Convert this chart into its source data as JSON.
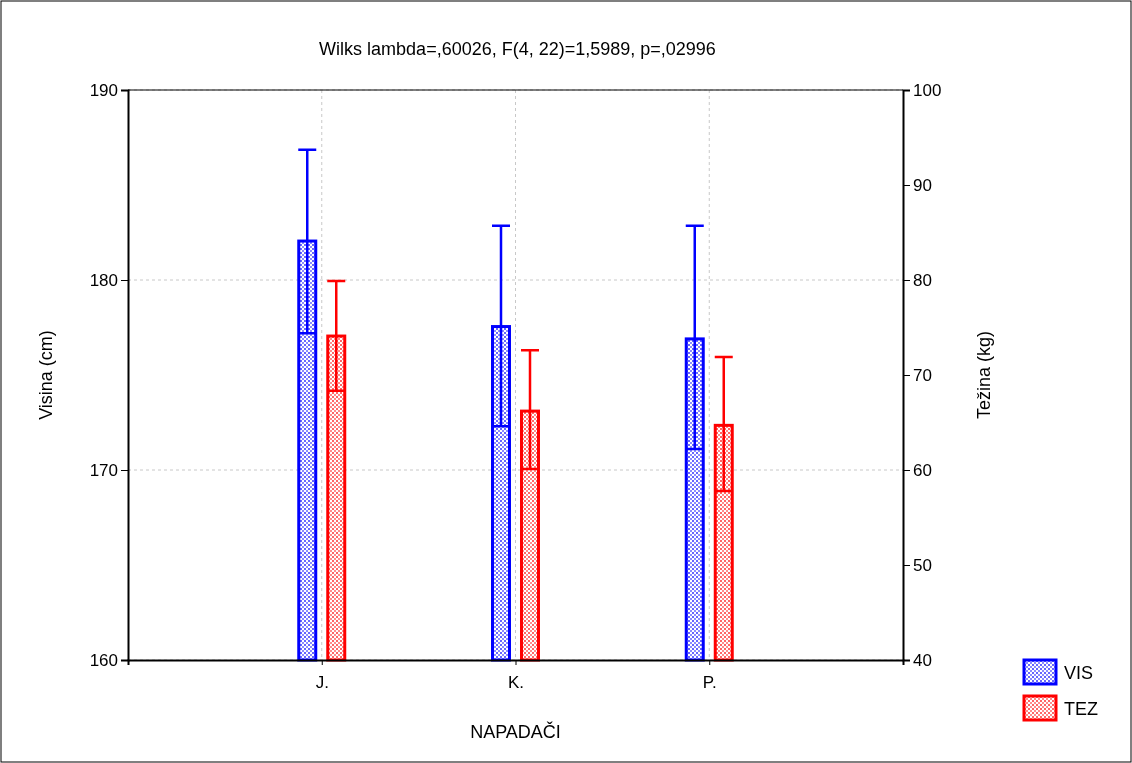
{
  "chart_data": {
    "type": "bar",
    "title": "Wilks lambda=,60026, F(4, 22)=1,5989, p=,02996",
    "xlabel": "NAPADAČI",
    "ylabel": "Visina (cm)",
    "y2label": "Težina (kg)",
    "categories": [
      "J.",
      "K.",
      "P."
    ],
    "series": [
      {
        "name": "VIS",
        "color": "#0000ff",
        "values": [
          182.05,
          177.55,
          176.9
        ],
        "errors": [
          [
            177.2,
            186.85
          ],
          [
            172.3,
            182.85
          ],
          [
            171.1,
            182.85
          ]
        ]
      },
      {
        "name": "TEZ",
        "color": "#ff0000",
        "axis": "y2",
        "values": [
          74.1,
          66.2,
          64.7
        ],
        "errors": [
          [
            68.35,
            79.9
          ],
          [
            60.1,
            72.6
          ],
          [
            57.8,
            71.9
          ]
        ]
      }
    ],
    "ylim": [
      160,
      190
    ],
    "yticks": [
      160,
      170,
      180,
      190
    ],
    "y2lim": [
      40,
      100
    ],
    "y2ticks": [
      40,
      50,
      60,
      70,
      80,
      90,
      100
    ],
    "grid": true,
    "legend": "bottom right"
  }
}
